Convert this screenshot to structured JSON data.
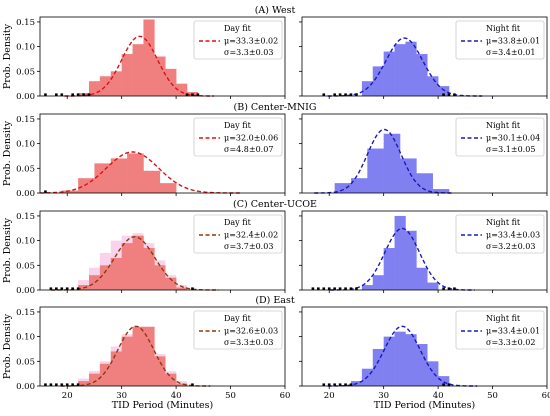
{
  "chart_data": [
    {
      "type": "bar",
      "row": 0,
      "col": 0,
      "title": "(A) West",
      "bins_x": [
        22,
        24,
        26,
        28,
        30,
        32,
        34,
        36,
        38,
        40,
        42
      ],
      "values": [
        0.006,
        0.03,
        0.04,
        0.05,
        0.085,
        0.105,
        0.155,
        0.08,
        0.055,
        0.025,
        0.008
      ],
      "ghost_values": [],
      "fit": {
        "mu": 33.3,
        "sigma": 3.3
      },
      "rug_x": [
        16,
        18,
        19,
        21,
        22,
        23,
        24,
        42,
        43,
        44
      ],
      "legend_title": "Day fit",
      "legend_mu": "μ=33.3±0.02",
      "legend_sigma": "σ=3.3±0.03",
      "ylabel": "Prob. Density",
      "xlabel": "",
      "xlim": [
        15,
        60
      ],
      "ylim": [
        0,
        0.16
      ],
      "yticks": [
        "0.00",
        "0.05",
        "0.10",
        "0.15"
      ]
    },
    {
      "type": "bar",
      "row": 0,
      "col": 1,
      "bins_x": [
        26,
        28,
        30,
        32,
        34,
        36,
        38,
        40
      ],
      "values": [
        0.03,
        0.06,
        0.09,
        0.105,
        0.11,
        0.085,
        0.04,
        0.02
      ],
      "ghost_values": [],
      "fit": {
        "mu": 33.8,
        "sigma": 3.4
      },
      "rug_x": [
        19,
        21,
        22,
        23,
        24,
        25,
        41,
        42,
        43
      ],
      "legend_title": "Night fit",
      "legend_mu": "μ=33.8±0.01",
      "legend_sigma": "σ=3.4±0.01",
      "ylabel": "",
      "xlabel": "",
      "xlim": [
        15,
        60
      ],
      "ylim": [
        0,
        0.16
      ],
      "yticks": []
    },
    {
      "type": "bar",
      "row": 1,
      "col": 0,
      "title": "(B) Center-MNIG",
      "bins_x": [
        19,
        22,
        25,
        28,
        31,
        34,
        37
      ],
      "values": [
        0.005,
        0.03,
        0.06,
        0.07,
        0.08,
        0.045,
        0.02
      ],
      "ghost_values": [],
      "fit": {
        "mu": 32.0,
        "sigma": 4.8
      },
      "rug_x": [
        16
      ],
      "legend_title": "Day fit",
      "legend_mu": "μ=32.0±0.06",
      "legend_sigma": "σ=4.8±0.07",
      "ylabel": "Prob. Density",
      "xlabel": "",
      "xlim": [
        15,
        60
      ],
      "ylim": [
        0,
        0.16
      ],
      "yticks": [
        "0.00",
        "0.05",
        "0.10",
        "0.15"
      ]
    },
    {
      "type": "bar",
      "row": 1,
      "col": 1,
      "bins_x": [
        21,
        24,
        27,
        30,
        33,
        36,
        39
      ],
      "values": [
        0.02,
        0.03,
        0.09,
        0.12,
        0.07,
        0.04,
        0.008
      ],
      "ghost_values": [],
      "fit": {
        "mu": 30.1,
        "sigma": 3.1
      },
      "rug_x": [],
      "legend_title": "Night fit",
      "legend_mu": "μ=30.1±0.04",
      "legend_sigma": "σ=3.1±0.05",
      "ylabel": "",
      "xlabel": "",
      "xlim": [
        15,
        60
      ],
      "ylim": [
        0,
        0.16
      ],
      "yticks": []
    },
    {
      "type": "bar",
      "row": 2,
      "col": 0,
      "title": "(C) Center-UCOE",
      "bins_x": [
        22,
        24,
        26,
        28,
        30,
        32,
        34,
        36,
        38,
        40
      ],
      "values": [
        0.01,
        0.03,
        0.05,
        0.065,
        0.095,
        0.11,
        0.085,
        0.05,
        0.025,
        0.005
      ],
      "ghost_values": [
        0.02,
        0.045,
        0.075,
        0.1,
        0.11,
        0.115,
        0.095,
        0.06,
        0.03,
        0.01
      ],
      "fit": {
        "mu": 32.4,
        "sigma": 3.7
      },
      "rug_x": [
        17,
        18,
        19,
        20,
        21,
        22,
        43
      ],
      "legend_title": "Day fit",
      "legend_mu": "μ=32.4±0.02",
      "legend_sigma": "σ=3.7±0.03",
      "ylabel": "Prob. Density",
      "xlabel": "",
      "xlim": [
        15,
        60
      ],
      "ylim": [
        0,
        0.16
      ],
      "yticks": [
        "0.00",
        "0.05",
        "0.10",
        "0.15"
      ]
    },
    {
      "type": "bar",
      "row": 2,
      "col": 1,
      "bins_x": [
        26,
        28,
        30,
        32,
        34,
        36,
        38
      ],
      "values": [
        0.01,
        0.03,
        0.085,
        0.15,
        0.12,
        0.045,
        0.015
      ],
      "ghost_values": [],
      "fit": {
        "mu": 33.4,
        "sigma": 3.2
      },
      "rug_x": [
        17,
        18,
        19,
        20,
        21,
        22,
        23,
        24,
        25,
        41,
        42,
        43
      ],
      "legend_title": "Night fit",
      "legend_mu": "μ=33.4±0.03",
      "legend_sigma": "σ=3.2±0.03",
      "ylabel": "",
      "xlabel": "",
      "xlim": [
        15,
        60
      ],
      "ylim": [
        0,
        0.16
      ],
      "yticks": []
    },
    {
      "type": "bar",
      "row": 3,
      "col": 0,
      "title": "(D) East",
      "bins_x": [
        22,
        24,
        26,
        28,
        30,
        32,
        34,
        36,
        38,
        40
      ],
      "values": [
        0.01,
        0.025,
        0.045,
        0.07,
        0.1,
        0.12,
        0.12,
        0.06,
        0.025,
        0.005
      ],
      "ghost_values": [
        0.015,
        0.03,
        0.05,
        0.08,
        0.105,
        0.12,
        0.11,
        0.065,
        0.03,
        0.01
      ],
      "fit": {
        "mu": 32.6,
        "sigma": 3.3
      },
      "rug_x": [
        16,
        17,
        18,
        19,
        20,
        21,
        22,
        43
      ],
      "legend_title": "Day fit",
      "legend_mu": "μ=32.6±0.03",
      "legend_sigma": "σ=3.3±0.03",
      "ylabel": "Prob. Density",
      "xlabel": "TID Period (Minutes)",
      "xlim": [
        15,
        60
      ],
      "ylim": [
        0,
        0.16
      ],
      "yticks": [
        "0.00",
        "0.05",
        "0.10",
        "0.15"
      ]
    },
    {
      "type": "bar",
      "row": 3,
      "col": 1,
      "bins_x": [
        24,
        26,
        28,
        30,
        32,
        34,
        36,
        38,
        40
      ],
      "values": [
        0.01,
        0.035,
        0.075,
        0.1,
        0.11,
        0.105,
        0.085,
        0.05,
        0.02
      ],
      "ghost_values": [],
      "fit": {
        "mu": 33.4,
        "sigma": 3.3
      },
      "rug_x": [
        19,
        20,
        21,
        22,
        23,
        24,
        41,
        42
      ],
      "legend_title": "Night fit",
      "legend_mu": "μ=33.4±0.01",
      "legend_sigma": "σ=3.3±0.02",
      "ylabel": "",
      "xlabel": "TID Period (Minutes)",
      "xlim": [
        15,
        60
      ],
      "ylim": [
        0,
        0.16
      ],
      "yticks": []
    }
  ],
  "xticks": [
    "20",
    "30",
    "40",
    "50",
    "60"
  ],
  "colors": {
    "day_bar": "#f08080",
    "day_ghost": "#f7c8e6",
    "night_bar": "#8080f0",
    "day_line_red": "#dd1111",
    "day_line_brown": "#8b3a0e",
    "night_line": "#1a1ab8"
  }
}
